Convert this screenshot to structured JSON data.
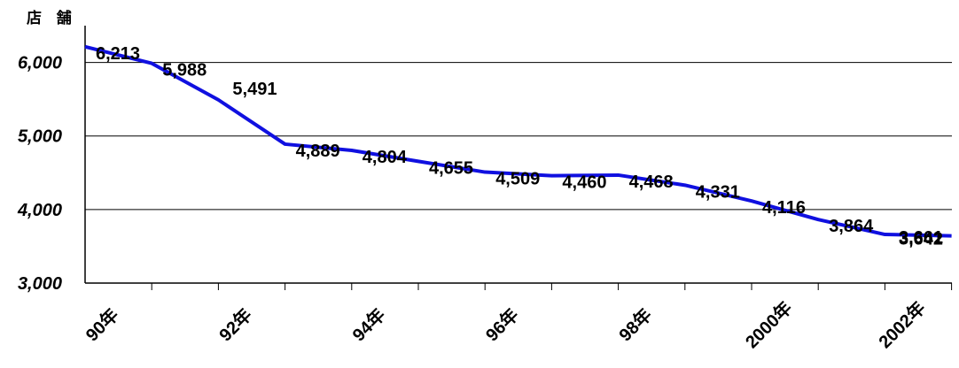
{
  "chart_data": {
    "type": "line",
    "ylabel": "店 舗",
    "ylim": [
      3000,
      6500
    ],
    "yticks": [
      3000,
      4000,
      5000,
      6000
    ],
    "ytick_labels": [
      "3,000",
      "4,000",
      "5,000",
      "6,000"
    ],
    "xticks": [
      "90年",
      "92年",
      "94年",
      "96年",
      "98年",
      "2000年",
      "2002年"
    ],
    "grid": true,
    "line_color": "#1010e0",
    "series": [
      {
        "values": [
          6213,
          5988,
          5491,
          4889,
          4804,
          4655,
          4509,
          4460,
          4468,
          4331,
          4116,
          3864,
          3661,
          3642
        ],
        "labels": [
          "6,213",
          "5,988",
          "5,491",
          "4,889",
          "4,804",
          "4,655",
          "4,509",
          "4,460",
          "4,468",
          "4,331",
          "4,116",
          "3,864",
          "3,661",
          "3,642"
        ]
      }
    ]
  }
}
